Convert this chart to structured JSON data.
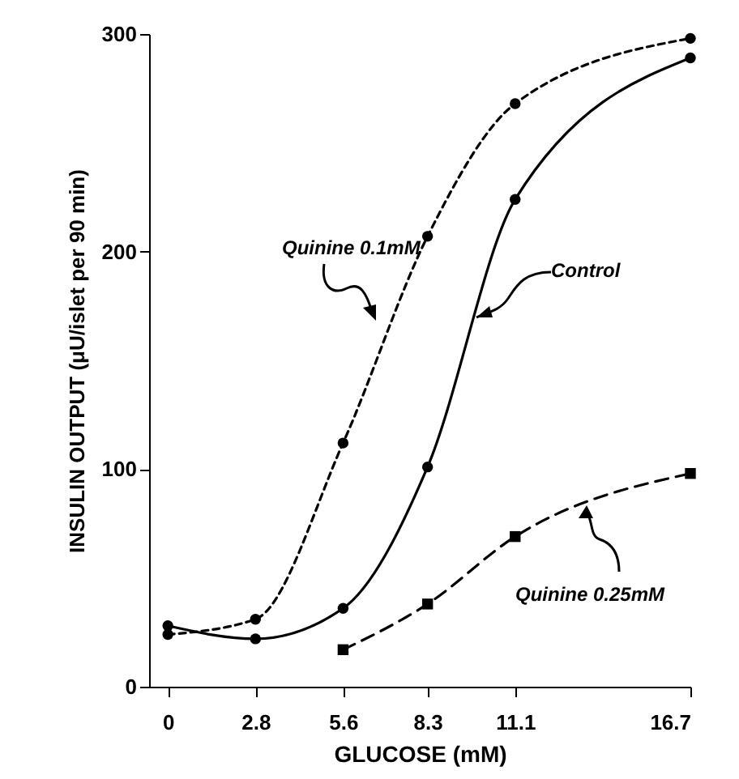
{
  "chart_data": {
    "type": "line",
    "xlabel": "GLUCOSE (mM)",
    "ylabel": "INSULIN OUTPUT (μU/islet per 90 min)",
    "x": [
      0,
      2.8,
      5.6,
      8.3,
      11.1,
      16.7
    ],
    "xlim": [
      -0.6,
      16.7
    ],
    "xticks": [
      0,
      2.8,
      5.6,
      8.3,
      11.1,
      16.7
    ],
    "ylim": [
      0,
      300
    ],
    "yticks": [
      0,
      100,
      200,
      300
    ],
    "grid": false,
    "series": [
      {
        "name": "Control",
        "color": "#000000",
        "marker": "circle",
        "line_style": "solid",
        "values": [
          28,
          22,
          36,
          101,
          224,
          289
        ]
      },
      {
        "name": "Quinine 0.1mM",
        "color": "#000000",
        "marker": "circle",
        "line_style": "dotted",
        "values": [
          24,
          31,
          112,
          207,
          268,
          298
        ]
      },
      {
        "name": "Quinine 0.25mM",
        "color": "#000000",
        "marker": "square",
        "line_style": "dashed",
        "values": [
          null,
          null,
          17,
          38,
          69,
          98
        ]
      }
    ]
  }
}
